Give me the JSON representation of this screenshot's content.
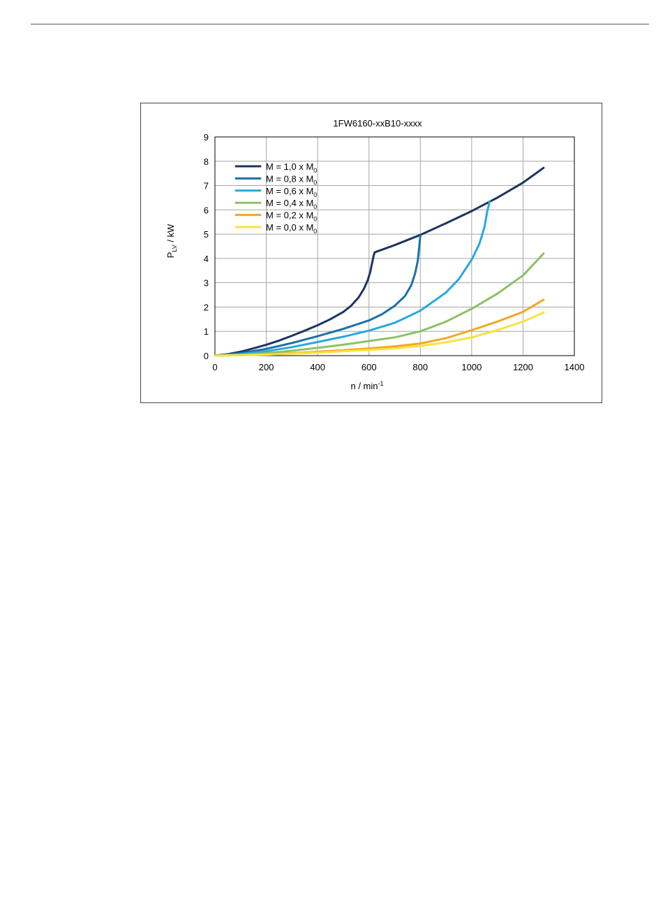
{
  "chart_data": {
    "type": "line",
    "title": "1FW6160-xxB10-xxxx",
    "ylabel": {
      "main": "P",
      "sub": "LV",
      "rest": " / kW"
    },
    "xlabel": {
      "main": "n / min",
      "sup": "-1"
    },
    "xlim": [
      0,
      1400
    ],
    "ylim": [
      0,
      9
    ],
    "xticks": [
      0,
      200,
      400,
      600,
      800,
      1000,
      1200,
      1400
    ],
    "yticks": [
      0,
      1,
      2,
      3,
      4,
      5,
      6,
      7,
      8,
      9
    ],
    "grid": true,
    "legend_position": "top-left",
    "series": [
      {
        "name": "M = 1,0 x M",
        "name_sub": "0",
        "color": "#1d3461",
        "points": [
          [
            0,
            0
          ],
          [
            50,
            0.06
          ],
          [
            100,
            0.16
          ],
          [
            150,
            0.3
          ],
          [
            200,
            0.45
          ],
          [
            250,
            0.62
          ],
          [
            300,
            0.82
          ],
          [
            350,
            1.03
          ],
          [
            400,
            1.25
          ],
          [
            450,
            1.5
          ],
          [
            500,
            1.8
          ],
          [
            530,
            2.05
          ],
          [
            560,
            2.4
          ],
          [
            580,
            2.75
          ],
          [
            595,
            3.1
          ],
          [
            605,
            3.45
          ],
          [
            612,
            3.8
          ],
          [
            618,
            4.1
          ],
          [
            622,
            4.25
          ],
          [
            700,
            4.55
          ],
          [
            800,
            4.97
          ],
          [
            900,
            5.45
          ],
          [
            1000,
            5.95
          ],
          [
            1100,
            6.5
          ],
          [
            1200,
            7.12
          ],
          [
            1280,
            7.73
          ]
        ]
      },
      {
        "name": "M = 0,8 x M",
        "name_sub": "0",
        "color": "#1b6faa",
        "points": [
          [
            0,
            0
          ],
          [
            100,
            0.1
          ],
          [
            200,
            0.28
          ],
          [
            300,
            0.52
          ],
          [
            400,
            0.8
          ],
          [
            500,
            1.1
          ],
          [
            600,
            1.45
          ],
          [
            650,
            1.7
          ],
          [
            700,
            2.05
          ],
          [
            740,
            2.45
          ],
          [
            765,
            2.9
          ],
          [
            780,
            3.4
          ],
          [
            790,
            3.9
          ],
          [
            796,
            4.5
          ],
          [
            800,
            4.95
          ]
        ]
      },
      {
        "name": "M = 0,6 x M",
        "name_sub": "0",
        "color": "#27a9dd",
        "points": [
          [
            0,
            0
          ],
          [
            100,
            0.06
          ],
          [
            200,
            0.18
          ],
          [
            300,
            0.35
          ],
          [
            400,
            0.56
          ],
          [
            500,
            0.78
          ],
          [
            600,
            1.03
          ],
          [
            700,
            1.35
          ],
          [
            800,
            1.85
          ],
          [
            900,
            2.6
          ],
          [
            950,
            3.15
          ],
          [
            1000,
            3.95
          ],
          [
            1030,
            4.6
          ],
          [
            1050,
            5.3
          ],
          [
            1060,
            5.9
          ],
          [
            1070,
            6.35
          ]
        ]
      },
      {
        "name": "M = 0,4 x M",
        "name_sub": "0",
        "color": "#8cc165",
        "points": [
          [
            0,
            0
          ],
          [
            100,
            0.03
          ],
          [
            200,
            0.1
          ],
          [
            300,
            0.2
          ],
          [
            400,
            0.32
          ],
          [
            500,
            0.45
          ],
          [
            600,
            0.6
          ],
          [
            700,
            0.75
          ],
          [
            800,
            1.0
          ],
          [
            900,
            1.4
          ],
          [
            1000,
            1.93
          ],
          [
            1100,
            2.55
          ],
          [
            1200,
            3.3
          ],
          [
            1280,
            4.2
          ]
        ]
      },
      {
        "name": "M = 0,2 x M",
        "name_sub": "0",
        "color": "#f5a623",
        "points": [
          [
            0,
            0
          ],
          [
            100,
            0.02
          ],
          [
            200,
            0.05
          ],
          [
            300,
            0.1
          ],
          [
            400,
            0.16
          ],
          [
            500,
            0.22
          ],
          [
            600,
            0.3
          ],
          [
            700,
            0.38
          ],
          [
            800,
            0.5
          ],
          [
            900,
            0.72
          ],
          [
            1000,
            1.05
          ],
          [
            1100,
            1.4
          ],
          [
            1200,
            1.8
          ],
          [
            1280,
            2.3
          ]
        ]
      },
      {
        "name": "M = 0,0 x M",
        "name_sub": "0",
        "color": "#f6e43c",
        "points": [
          [
            0,
            0
          ],
          [
            200,
            0.04
          ],
          [
            400,
            0.12
          ],
          [
            600,
            0.24
          ],
          [
            700,
            0.3
          ],
          [
            800,
            0.4
          ],
          [
            900,
            0.55
          ],
          [
            1000,
            0.75
          ],
          [
            1100,
            1.05
          ],
          [
            1200,
            1.4
          ],
          [
            1280,
            1.77
          ]
        ]
      }
    ]
  }
}
